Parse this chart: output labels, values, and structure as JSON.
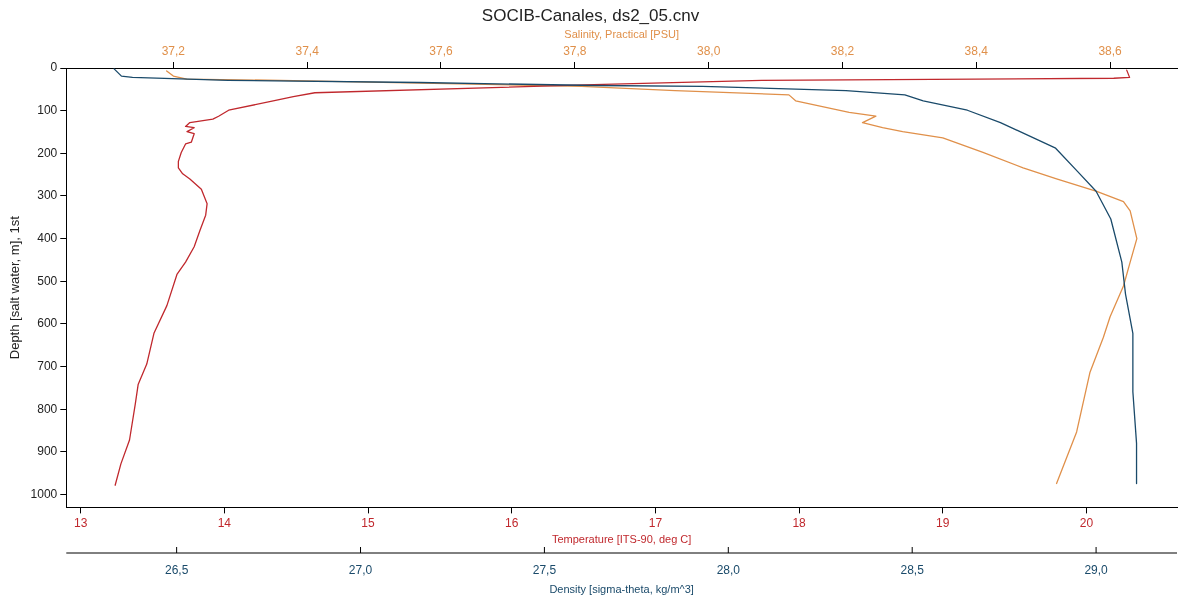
{
  "chart_data": [
    {
      "type": "line",
      "title": "SOCIB-Canales, ds2_05.cnv",
      "xlabel": "Temperature [ITS-90, deg C]",
      "x2label": "Salinity, Practical [PSU]",
      "ylabel": "Depth [salt water, m], 1st",
      "xlim": [
        12.9,
        20.63
      ],
      "xticks": [
        13,
        14,
        15,
        16,
        17,
        18,
        19,
        20
      ],
      "x2lim": [
        37.04,
        38.7
      ],
      "x2ticks": [
        {
          "value": 37.2,
          "label": "37,2"
        },
        {
          "value": 37.4,
          "label": "37,4"
        },
        {
          "value": 37.6,
          "label": "37,6"
        },
        {
          "value": 37.8,
          "label": "37,8"
        },
        {
          "value": 38.0,
          "label": "38,0"
        },
        {
          "value": 38.2,
          "label": "38,2"
        },
        {
          "value": 38.4,
          "label": "38,4"
        },
        {
          "value": 38.6,
          "label": "38,6"
        }
      ],
      "ylim": [
        1030,
        0
      ],
      "yticks": [
        0,
        100,
        200,
        300,
        400,
        500,
        600,
        700,
        800,
        900,
        1000
      ],
      "grid": false,
      "legend": false,
      "marker": "none",
      "line_style": "solid",
      "series": [
        {
          "color": "#c0282d",
          "x": [
            20.28,
            20.3,
            20.19,
            17.74,
            16.57,
            14.63,
            14.48,
            14.34,
            14.03,
            13.96,
            13.92,
            13.76,
            13.73,
            13.79,
            13.74,
            13.79,
            13.77,
            13.73,
            13.7,
            13.68,
            13.68,
            13.71,
            13.76,
            13.84,
            13.88,
            13.87,
            13.83,
            13.79,
            13.73,
            13.67,
            13.6,
            13.51,
            13.46,
            13.4,
            13.38,
            13.34,
            13.28,
            13.24
          ],
          "values": [
            5,
            22,
            24,
            29,
            39,
            58,
            67,
            77,
            99,
            113,
            120,
            128,
            137,
            140,
            149,
            154,
            174,
            178,
            198,
            219,
            234,
            248,
            260,
            284,
            318,
            345,
            381,
            419,
            455,
            484,
            557,
            622,
            694,
            742,
            788,
            872,
            928,
            978
          ]
        },
        {
          "color": "#e0904a",
          "axis": "x2",
          "x": [
            37.19,
            37.2,
            37.22,
            37.36,
            37.81,
            37.95,
            38.12,
            38.13,
            38.21,
            38.25,
            38.23,
            38.26,
            38.29,
            38.35,
            38.41,
            38.47,
            38.52,
            38.58,
            38.62,
            38.63,
            38.64,
            38.63,
            38.62,
            38.6,
            38.59,
            38.57,
            38.55,
            38.52
          ],
          "values": [
            7,
            19,
            26,
            29,
            43,
            53,
            63,
            77,
            104,
            113,
            128,
            140,
            149,
            164,
            198,
            234,
            260,
            289,
            313,
            335,
            400,
            455,
            511,
            583,
            631,
            713,
            853,
            974
          ]
        }
      ]
    },
    {
      "type": "line",
      "xlabel": "Density [sigma-theta, kg/m^3]",
      "xlim": [
        26.2,
        29.22
      ],
      "xticks": [
        {
          "value": 26.5,
          "label": "26,5"
        },
        {
          "value": 27.0,
          "label": "27,0"
        },
        {
          "value": 27.5,
          "label": "27,5"
        },
        {
          "value": 28.0,
          "label": "28,0"
        },
        {
          "value": 28.5,
          "label": "28,5"
        },
        {
          "value": 29.0,
          "label": "29,0"
        }
      ],
      "ylim": [
        1030,
        0
      ],
      "tick_labels": "x",
      "grid": false,
      "legend": false,
      "marker": "none",
      "line_style": "solid",
      "series": [
        {
          "color": "#1a4a6a",
          "x": [
            26.33,
            26.35,
            26.38,
            26.64,
            27.16,
            27.64,
            27.93,
            28.32,
            28.48,
            28.53,
            28.65,
            28.74,
            28.89,
            28.95,
            29.0,
            29.04,
            29.07,
            29.08,
            29.1,
            29.1,
            29.11,
            29.11
          ],
          "values": [
            2,
            19,
            22,
            29,
            34,
            41,
            43,
            53,
            63,
            77,
            99,
            128,
            188,
            243,
            289,
            354,
            455,
            530,
            622,
            759,
            880,
            974
          ]
        }
      ]
    }
  ]
}
